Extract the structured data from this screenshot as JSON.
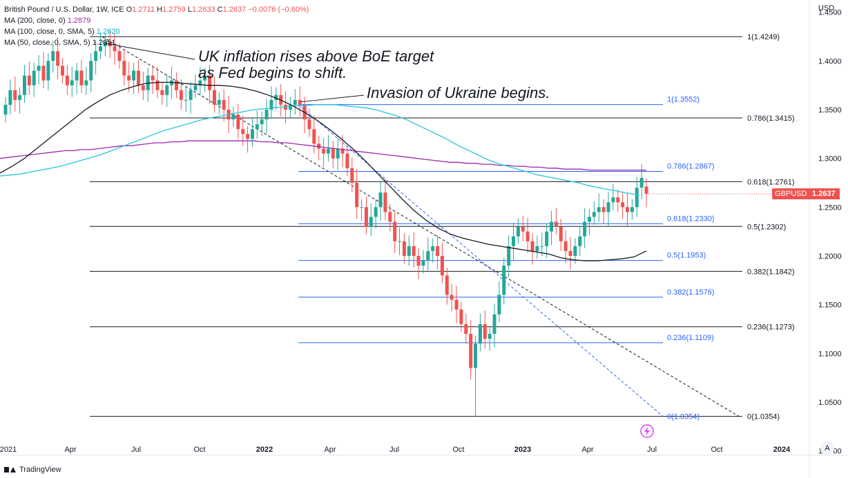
{
  "legend": {
    "symbol_line": "British Pound / U.S. Dollar, 1W, ICE",
    "open_label": "O",
    "open": "1.2711",
    "high_label": "H",
    "high": "1.2759",
    "low_label": "L",
    "low": "1.2633",
    "close_label": "C",
    "close": "1.2637",
    "change": "−0.0076 (−0.60%)",
    "ma200_label": "MA (200, close, 0)",
    "ma200_value": "1.2879",
    "ma100_label": "MA (100, close, 0, SMA, 5)",
    "ma100_value": "1.2620",
    "ma50_label": "MA (50, close, 0, SMA, 5)",
    "ma50_value": "1.2051"
  },
  "currency": "USD",
  "axis_button": "A",
  "footer": {
    "brand": "TradingView"
  },
  "price_tag": {
    "symbol": "GBPUSD",
    "value": "1.2637"
  },
  "annotations": {
    "note1": "UK inflation rises above BoE target as Fed begins to shift.",
    "note2": "Invasion of Ukraine begins."
  },
  "colors": {
    "up": "#26a69a",
    "down": "#ef5350",
    "ma200": "#9c27b0",
    "ma100": "#26c6da",
    "ma50": "#131722",
    "fib_blue": "#2962ff",
    "fib_black": "#131722"
  },
  "chart_data": {
    "type": "candlestick",
    "x_ticks": [
      "2021",
      "Apr",
      "Jul",
      "Oct",
      "2022",
      "Apr",
      "Jul",
      "Oct",
      "2023",
      "Apr",
      "Jul",
      "Oct",
      "2024"
    ],
    "y_ticks": [
      "1.4500",
      "1.4000",
      "1.3500",
      "1.3000",
      "1.2500",
      "1.2000",
      "1.1500",
      "1.1000",
      "1.0500",
      "1.0000"
    ],
    "ylim": [
      0.9955,
      1.4625
    ],
    "fib_black": [
      {
        "label": "1(1.4249)",
        "value": 1.4249
      },
      {
        "label": "0.786(1.3415)",
        "value": 1.3415
      },
      {
        "label": "0.618(1.2761)",
        "value": 1.2761
      },
      {
        "label": "0.5(1.2302)",
        "value": 1.2302
      },
      {
        "label": "0.382(1.1842)",
        "value": 1.1842
      },
      {
        "label": "0.236(1.1273)",
        "value": 1.1273
      },
      {
        "label": "0(1.0354)",
        "value": 1.0354
      }
    ],
    "fib_blue": [
      {
        "label": "1(1.3552)",
        "value": 1.3552
      },
      {
        "label": "0.786(1.2867)",
        "value": 1.2867
      },
      {
        "label": "0.618(1.2330)",
        "value": 1.233
      },
      {
        "label": "0.5(1.1953)",
        "value": 1.1953
      },
      {
        "label": "0.382(1.1576)",
        "value": 1.1576
      },
      {
        "label": "0.236(1.1109)",
        "value": 1.1109
      },
      {
        "label": "0(1.0354)",
        "value": 1.0354
      }
    ],
    "closes": [
      1.355,
      1.37,
      1.36,
      1.365,
      1.385,
      1.375,
      1.39,
      1.395,
      1.38,
      1.4,
      1.41,
      1.395,
      1.385,
      1.375,
      1.38,
      1.39,
      1.375,
      1.38,
      1.4,
      1.41,
      1.415,
      1.42,
      1.415,
      1.41,
      1.4,
      1.385,
      1.38,
      1.39,
      1.375,
      1.37,
      1.385,
      1.38,
      1.37,
      1.365,
      1.375,
      1.38,
      1.37,
      1.36,
      1.36,
      1.37,
      1.375,
      1.38,
      1.385,
      1.37,
      1.355,
      1.36,
      1.35,
      1.34,
      1.345,
      1.33,
      1.325,
      1.32,
      1.33,
      1.335,
      1.34,
      1.35,
      1.36,
      1.365,
      1.355,
      1.35,
      1.355,
      1.36,
      1.355,
      1.34,
      1.33,
      1.315,
      1.31,
      1.305,
      1.31,
      1.3,
      1.31,
      1.305,
      1.29,
      1.275,
      1.25,
      1.25,
      1.23,
      1.24,
      1.25,
      1.265,
      1.245,
      1.235,
      1.215,
      1.215,
      1.2,
      1.21,
      1.2,
      1.19,
      1.195,
      1.205,
      1.21,
      1.2,
      1.18,
      1.16,
      1.155,
      1.145,
      1.13,
      1.12,
      1.085,
      1.11,
      1.13,
      1.115,
      1.12,
      1.14,
      1.16,
      1.19,
      1.21,
      1.22,
      1.23,
      1.225,
      1.215,
      1.205,
      1.21,
      1.21,
      1.225,
      1.235,
      1.23,
      1.215,
      1.205,
      1.2,
      1.21,
      1.22,
      1.235,
      1.24,
      1.245,
      1.25,
      1.245,
      1.255,
      1.26,
      1.255,
      1.25,
      1.245,
      1.25,
      1.27,
      1.28,
      1.2637
    ],
    "opens": [
      1.345,
      1.355,
      1.37,
      1.36,
      1.365,
      1.385,
      1.375,
      1.39,
      1.395,
      1.38,
      1.4,
      1.41,
      1.395,
      1.385,
      1.375,
      1.38,
      1.39,
      1.375,
      1.38,
      1.4,
      1.41,
      1.415,
      1.42,
      1.415,
      1.41,
      1.4,
      1.385,
      1.38,
      1.39,
      1.375,
      1.37,
      1.385,
      1.38,
      1.37,
      1.365,
      1.375,
      1.38,
      1.37,
      1.36,
      1.36,
      1.37,
      1.375,
      1.38,
      1.385,
      1.37,
      1.355,
      1.36,
      1.35,
      1.34,
      1.345,
      1.33,
      1.325,
      1.32,
      1.33,
      1.335,
      1.34,
      1.35,
      1.36,
      1.365,
      1.355,
      1.35,
      1.355,
      1.36,
      1.355,
      1.34,
      1.33,
      1.315,
      1.31,
      1.305,
      1.31,
      1.3,
      1.31,
      1.305,
      1.29,
      1.275,
      1.25,
      1.25,
      1.23,
      1.24,
      1.25,
      1.265,
      1.245,
      1.235,
      1.215,
      1.215,
      1.2,
      1.21,
      1.2,
      1.19,
      1.195,
      1.205,
      1.21,
      1.2,
      1.18,
      1.16,
      1.155,
      1.145,
      1.13,
      1.12,
      1.085,
      1.11,
      1.13,
      1.115,
      1.12,
      1.14,
      1.16,
      1.19,
      1.21,
      1.22,
      1.23,
      1.225,
      1.215,
      1.205,
      1.21,
      1.21,
      1.225,
      1.235,
      1.23,
      1.215,
      1.205,
      1.2,
      1.21,
      1.22,
      1.235,
      1.24,
      1.245,
      1.25,
      1.245,
      1.255,
      1.26,
      1.255,
      1.25,
      1.245,
      1.25,
      1.27,
      1.2711
    ],
    "ma200": [
      1.3,
      1.301,
      1.302,
      1.303,
      1.304,
      1.305,
      1.306,
      1.307,
      1.308,
      1.308,
      1.309,
      1.309,
      1.31,
      1.311,
      1.312,
      1.313,
      1.313,
      1.314,
      1.315,
      1.316,
      1.316,
      1.317,
      1.317,
      1.318,
      1.318,
      1.318,
      1.318,
      1.318,
      1.318,
      1.318,
      1.318,
      1.318,
      1.317,
      1.317,
      1.316,
      1.316,
      1.315,
      1.314,
      1.313,
      1.312,
      1.311,
      1.31,
      1.309,
      1.308,
      1.307,
      1.306,
      1.305,
      1.304,
      1.303,
      1.302,
      1.301,
      1.3,
      1.299,
      1.298,
      1.297,
      1.296,
      1.296,
      1.295,
      1.295,
      1.294,
      1.294,
      1.293,
      1.293,
      1.292,
      1.292,
      1.291,
      1.291,
      1.29,
      1.29,
      1.289,
      1.289,
      1.289,
      1.288,
      1.288,
      1.288,
      1.288,
      1.288,
      1.288,
      1.288,
      1.2879
    ],
    "ma100": [
      1.282,
      1.283,
      1.284,
      1.286,
      1.288,
      1.29,
      1.292,
      1.295,
      1.298,
      1.301,
      1.304,
      1.308,
      1.312,
      1.316,
      1.32,
      1.324,
      1.328,
      1.331,
      1.334,
      1.337,
      1.34,
      1.342,
      1.344,
      1.346,
      1.348,
      1.35,
      1.351,
      1.352,
      1.353,
      1.354,
      1.354,
      1.355,
      1.355,
      1.355,
      1.354,
      1.353,
      1.352,
      1.35,
      1.347,
      1.344,
      1.34,
      1.335,
      1.33,
      1.325,
      1.32,
      1.314,
      1.309,
      1.304,
      1.299,
      1.295,
      1.292,
      1.289,
      1.286,
      1.283,
      1.281,
      1.279,
      1.277,
      1.275,
      1.272,
      1.27,
      1.268,
      1.266,
      1.264,
      1.262
    ],
    "ma50": [
      1.285,
      1.292,
      1.3,
      1.31,
      1.32,
      1.33,
      1.34,
      1.35,
      1.358,
      1.365,
      1.37,
      1.374,
      1.377,
      1.378,
      1.378,
      1.377,
      1.376,
      1.375,
      1.375,
      1.374,
      1.372,
      1.369,
      1.365,
      1.36,
      1.354,
      1.347,
      1.339,
      1.33,
      1.32,
      1.309,
      1.297,
      1.284,
      1.271,
      1.258,
      1.246,
      1.236,
      1.228,
      1.222,
      1.218,
      1.215,
      1.212,
      1.21,
      1.208,
      1.206,
      1.204,
      1.202,
      1.198,
      1.196,
      1.195,
      1.195,
      1.196,
      1.197,
      1.199,
      1.2051
    ]
  }
}
